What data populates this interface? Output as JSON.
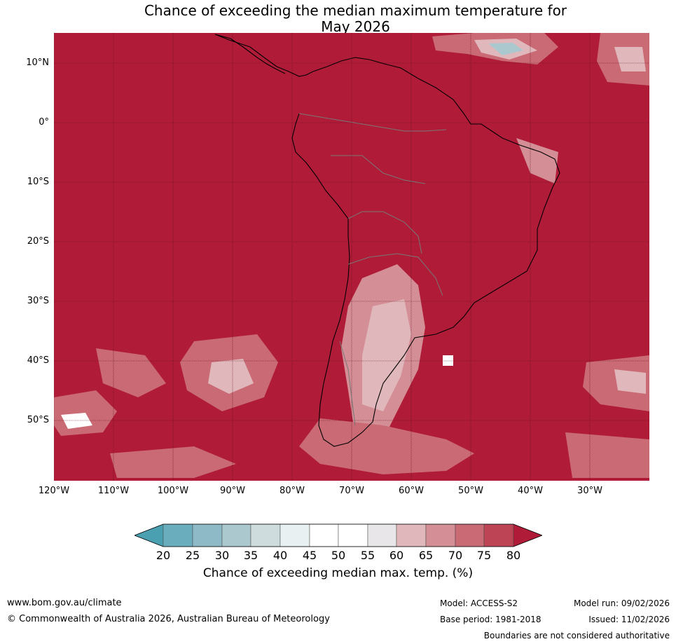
{
  "title": {
    "line1": "Chance of exceeding the median maximum temperature for",
    "line2": "May 2026"
  },
  "map": {
    "ocean_color": "#b01c38",
    "lat_labels": [
      "10°N",
      "0°",
      "10°S",
      "20°S",
      "30°S",
      "40°S",
      "50°S"
    ],
    "lon_labels": [
      "120°W",
      "110°W",
      "100°W",
      "90°W",
      "80°W",
      "70°W",
      "60°W",
      "50°W",
      "40°W",
      "30°W"
    ]
  },
  "colorbar": {
    "ticks": [
      "20",
      "25",
      "30",
      "35",
      "40",
      "45",
      "50",
      "55",
      "60",
      "65",
      "70",
      "75",
      "80"
    ],
    "colors": [
      "#4aa0b0",
      "#6aaebe",
      "#8dbac6",
      "#aac8ce",
      "#cfdcde",
      "#e9f0f2",
      "#ffffff",
      "#ffffff",
      "#e8e6e8",
      "#e0b8bc",
      "#d48e96",
      "#c96a74",
      "#bd4454",
      "#b01c38"
    ],
    "label": "Chance of exceeding median max. temp. (%)"
  },
  "footer": {
    "website": "www.bom.gov.au/climate",
    "copyright": "© Commonwealth of Australia 2026, Australian Bureau of Meteorology",
    "model": "Model: ACCESS-S2",
    "base_period": "Base period: 1981-2018",
    "model_run": "Model run: 09/02/2026",
    "issued": "Issued: 11/02/2026",
    "disclaimer": "Boundaries are not considered authoritative"
  }
}
